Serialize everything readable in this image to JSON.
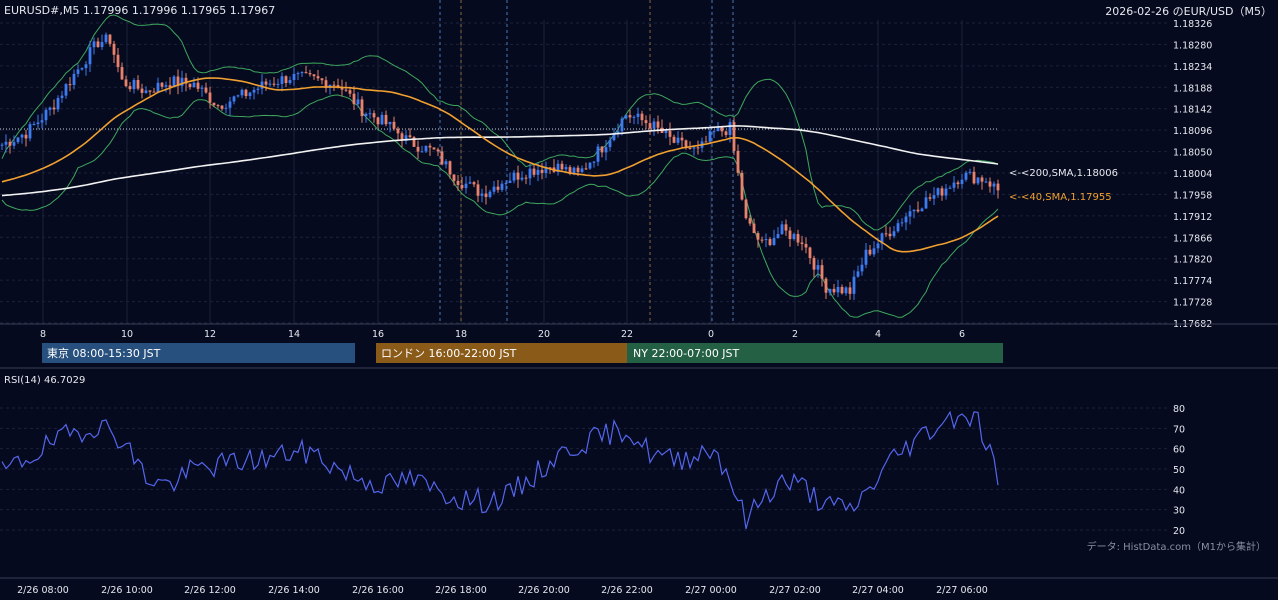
{
  "header": {
    "symbol_info": "EURUSD#,M5 1.17996 1.17996 1.17965 1.17967",
    "title": "2026-02-26 のEUR/USD（M5）"
  },
  "colors": {
    "background": "#050a1e",
    "bull": "#3d7bf0",
    "bear": "#e8826c",
    "bollinger": "#3fa75e",
    "sma40": "#f0a030",
    "sma200": "#f2f2f2",
    "rsi": "#5566ee",
    "tokyo": "#27507e",
    "london": "#8a5a18",
    "ny": "#246043"
  },
  "main_chart": {
    "y_ticks": [
      "1.18326",
      "1.18280",
      "1.18234",
      "1.18188",
      "1.18142",
      "1.18096",
      "1.18050",
      "1.18004",
      "1.17958",
      "1.17912",
      "1.17866",
      "1.17820",
      "1.17774",
      "1.17728",
      "1.17682"
    ],
    "x_ticks": [
      "8",
      "10",
      "12",
      "14",
      "16",
      "18",
      "20",
      "22",
      "0",
      "2",
      "4",
      "6"
    ],
    "sma200_label": "<-<200,SMA,1.18006",
    "sma40_label": "<-<40,SMA,1.17955"
  },
  "sessions": [
    {
      "label": "東京 08:00-15:30 JST"
    },
    {
      "label": "ロンドン 16:00-22:00 JST"
    },
    {
      "label": "NY 22:00-07:00 JST"
    }
  ],
  "rsi": {
    "label": "RSI(14) 46.7029",
    "ticks": [
      "80",
      "70",
      "60",
      "50",
      "40",
      "30",
      "20"
    ]
  },
  "footer": {
    "source": "データ: HistData.com（M1から集計）",
    "time_ticks": [
      "2/26 08:00",
      "2/26 10:00",
      "2/26 12:00",
      "2/26 14:00",
      "2/26 16:00",
      "2/26 18:00",
      "2/26 20:00",
      "2/26 22:00",
      "2/27 00:00",
      "2/27 02:00",
      "2/27 04:00",
      "2/27 06:00"
    ]
  },
  "chart_data": {
    "type": "candlestick",
    "timeframe": "M5",
    "y_range": [
      1.17682,
      1.18326
    ],
    "price_path": [
      [
        0,
        1.18065
      ],
      [
        6,
        1.1809
      ],
      [
        12,
        1.1814
      ],
      [
        18,
        1.18215
      ],
      [
        24,
        1.18285
      ],
      [
        27,
        1.1829
      ],
      [
        30,
        1.182
      ],
      [
        36,
        1.1818
      ],
      [
        42,
        1.182
      ],
      [
        48,
        1.18195
      ],
      [
        54,
        1.1815
      ],
      [
        60,
        1.1817
      ],
      [
        66,
        1.18195
      ],
      [
        72,
        1.1821
      ],
      [
        78,
        1.18205
      ],
      [
        84,
        1.18195
      ],
      [
        90,
        1.1814
      ],
      [
        96,
        1.1811
      ],
      [
        102,
        1.1807
      ],
      [
        108,
        1.1805
      ],
      [
        114,
        1.1799
      ],
      [
        120,
        1.1796
      ],
      [
        126,
        1.1799
      ],
      [
        132,
        1.1801
      ],
      [
        138,
        1.1802
      ],
      [
        144,
        1.18
      ],
      [
        150,
        1.1806
      ],
      [
        156,
        1.1813
      ],
      [
        162,
        1.1811
      ],
      [
        168,
        1.1807
      ],
      [
        174,
        1.1805
      ],
      [
        178,
        1.1809
      ],
      [
        182,
        1.181
      ],
      [
        186,
        1.179
      ],
      [
        190,
        1.1785
      ],
      [
        195,
        1.1788
      ],
      [
        200,
        1.1786
      ],
      [
        206,
        1.1776
      ],
      [
        212,
        1.1775
      ],
      [
        216,
        1.1783
      ],
      [
        222,
        1.1788
      ],
      [
        228,
        1.1793
      ],
      [
        234,
        1.1796
      ],
      [
        240,
        1.18
      ],
      [
        246,
        1.1799
      ],
      [
        249,
        1.17967
      ]
    ],
    "sma40_label": 1.17955,
    "sma200_label": 1.18006,
    "rsi_path": [
      [
        0,
        48
      ],
      [
        6,
        55
      ],
      [
        12,
        62
      ],
      [
        18,
        68
      ],
      [
        24,
        72
      ],
      [
        30,
        65
      ],
      [
        36,
        46
      ],
      [
        42,
        42
      ],
      [
        48,
        50
      ],
      [
        54,
        52
      ],
      [
        60,
        54
      ],
      [
        66,
        55
      ],
      [
        72,
        58
      ],
      [
        78,
        58
      ],
      [
        84,
        50
      ],
      [
        90,
        45
      ],
      [
        96,
        42
      ],
      [
        102,
        45
      ],
      [
        108,
        40
      ],
      [
        114,
        36
      ],
      [
        120,
        34
      ],
      [
        126,
        36
      ],
      [
        132,
        45
      ],
      [
        138,
        55
      ],
      [
        144,
        62
      ],
      [
        150,
        66
      ],
      [
        156,
        70
      ],
      [
        162,
        58
      ],
      [
        168,
        54
      ],
      [
        174,
        58
      ],
      [
        178,
        60
      ],
      [
        182,
        46
      ],
      [
        186,
        24
      ],
      [
        190,
        36
      ],
      [
        195,
        44
      ],
      [
        200,
        42
      ],
      [
        206,
        32
      ],
      [
        212,
        30
      ],
      [
        216,
        38
      ],
      [
        222,
        54
      ],
      [
        228,
        64
      ],
      [
        234,
        72
      ],
      [
        240,
        78
      ],
      [
        244,
        74
      ],
      [
        247,
        58
      ],
      [
        249,
        47
      ]
    ],
    "rsi_range": [
      20,
      80
    ]
  }
}
